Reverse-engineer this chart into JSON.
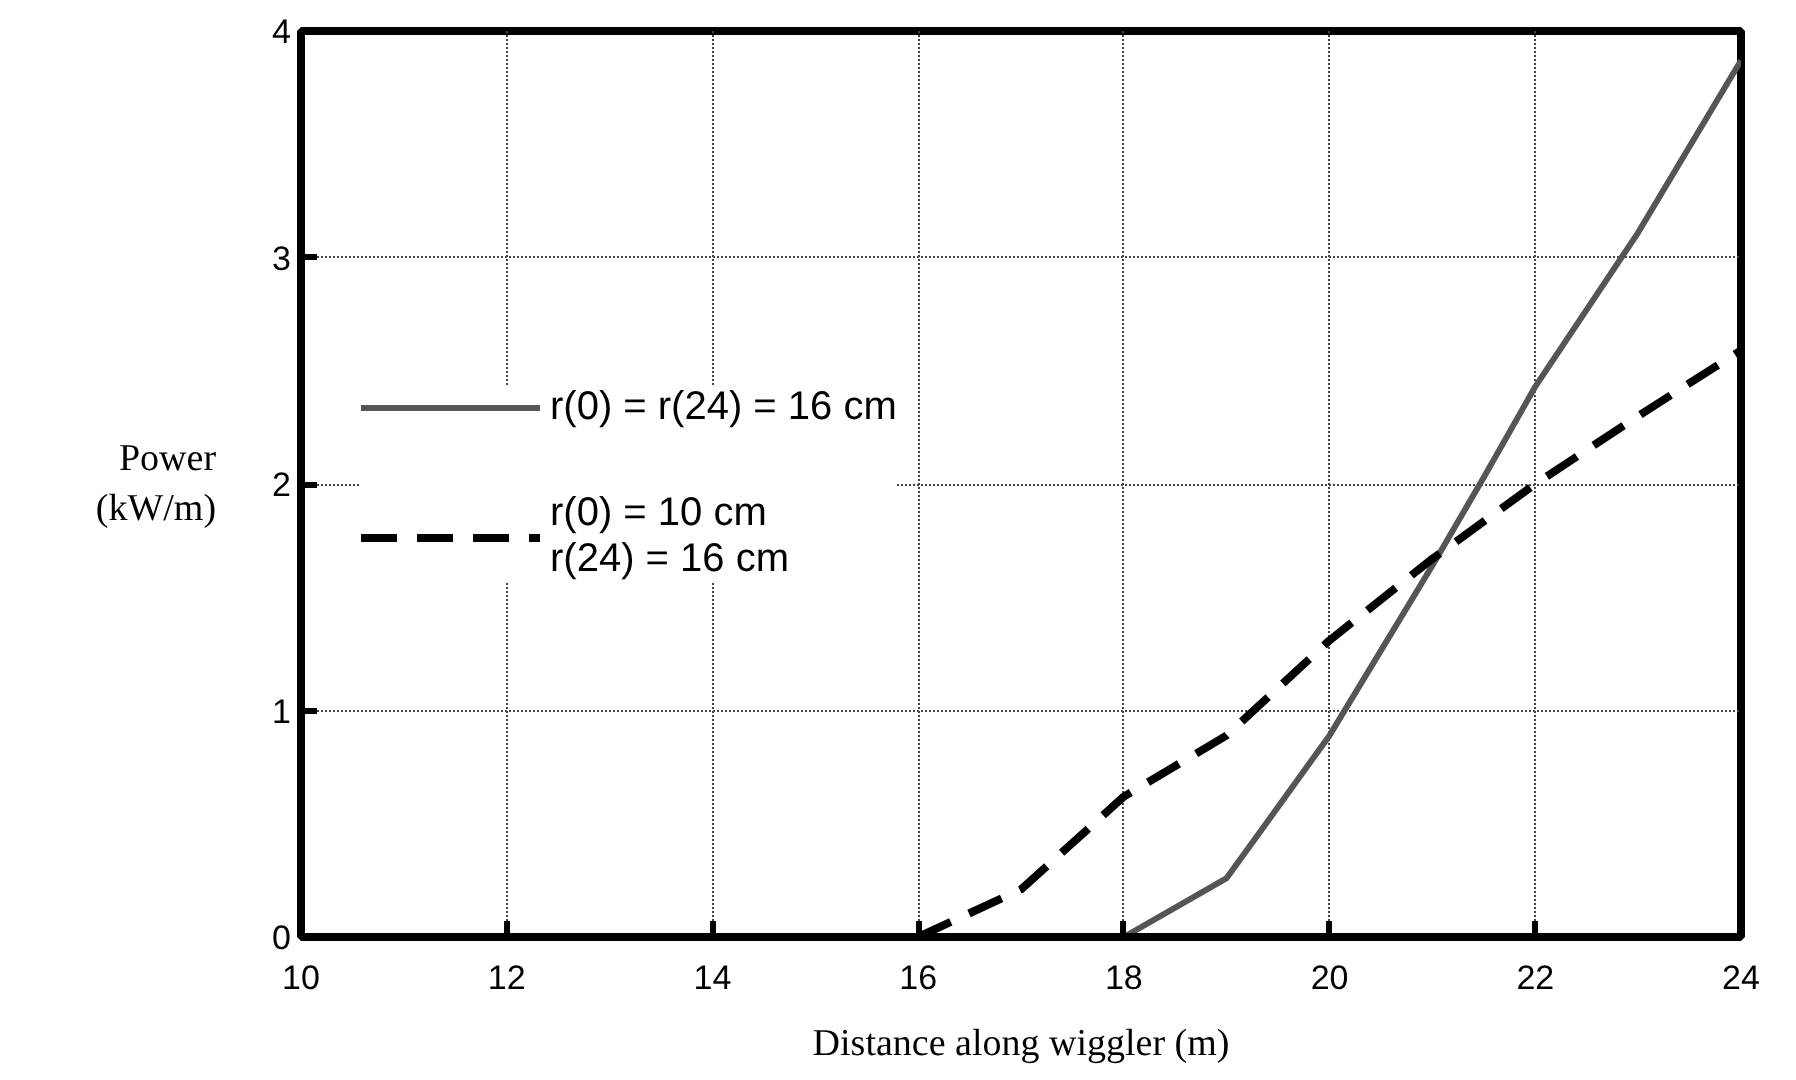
{
  "chart_data": {
    "type": "line",
    "xlabel": "Distance along wiggler (m)",
    "ylabel": "Power\n(kW/m)",
    "xlim": [
      10,
      24
    ],
    "xticks": [
      10,
      12,
      14,
      16,
      18,
      20,
      22,
      24
    ],
    "ylim": [
      0,
      4
    ],
    "yticks": [
      0,
      1,
      2,
      3,
      4
    ],
    "grid": true,
    "legend": "left",
    "marker": "none",
    "series": [
      {
        "name": "r(0) = r(24) = 16 cm",
        "color": "#555555",
        "line_style": "solid",
        "x": [
          16.3,
          18,
          19,
          20,
          21,
          21.5,
          22,
          23,
          24
        ],
        "values": [
          0,
          0,
          0.26,
          0.89,
          1.64,
          2.03,
          2.43,
          3.11,
          3.87
        ]
      },
      {
        "name": "r(0) = 10 cm\nr(24) = 16 cm",
        "color": "#000000",
        "line_style": "dashed",
        "x": [
          16,
          17,
          18,
          19,
          20,
          21,
          22,
          23,
          24
        ],
        "values": [
          0,
          0.21,
          0.62,
          0.89,
          1.31,
          1.67,
          2.0,
          2.3,
          2.59
        ]
      }
    ]
  }
}
